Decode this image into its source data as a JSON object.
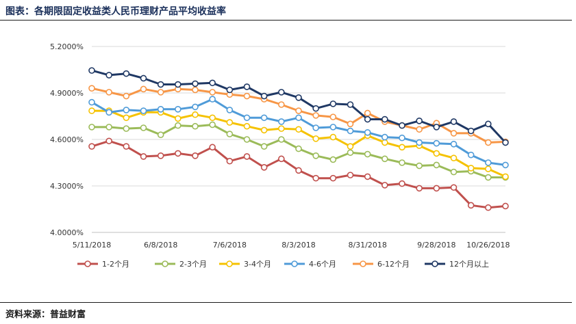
{
  "header": {
    "title": "图表：各期限固定收益类人民币理财产品平均收益率"
  },
  "footer": {
    "source": "资料来源：普益财富"
  },
  "chart_data": {
    "type": "line",
    "title": "",
    "xlabel": "",
    "ylabel": "",
    "ylim": [
      4.0,
      5.2
    ],
    "yticks": [
      "4.0000%",
      "4.3000%",
      "4.6000%",
      "4.9000%",
      "5.2000%"
    ],
    "xticks": [
      "5/11/2018",
      "6/8/2018",
      "7/6/2018",
      "8/3/2018",
      "8/31/2018",
      "9/28/2018",
      "10/26/2018"
    ],
    "grid": "horizontal",
    "legend": "bottom",
    "x": [
      "5/11/2018",
      "5/18/2018",
      "5/25/2018",
      "6/1/2018",
      "6/8/2018",
      "6/15/2018",
      "6/22/2018",
      "6/29/2018",
      "7/6/2018",
      "7/13/2018",
      "7/20/2018",
      "7/27/2018",
      "8/3/2018",
      "8/10/2018",
      "8/17/2018",
      "8/24/2018",
      "8/31/2018",
      "9/7/2018",
      "9/14/2018",
      "9/21/2018",
      "9/28/2018",
      "10/12/2018",
      "10/19/2018",
      "10/26/2018",
      "11/2/2018"
    ],
    "series": [
      {
        "name": "1-2个月",
        "color": "#c0504d",
        "values": [
          4.555,
          4.59,
          4.555,
          4.49,
          4.495,
          4.51,
          4.495,
          4.55,
          4.46,
          4.49,
          4.42,
          4.475,
          4.4,
          4.35,
          4.35,
          4.37,
          4.36,
          4.305,
          4.315,
          4.285,
          4.285,
          4.29,
          4.175,
          4.16,
          4.17
        ]
      },
      {
        "name": "2-3个月",
        "color": "#9bbb59",
        "values": [
          4.68,
          4.68,
          4.67,
          4.675,
          4.63,
          4.69,
          4.685,
          4.695,
          4.635,
          4.6,
          4.555,
          4.6,
          4.54,
          4.495,
          4.47,
          4.515,
          4.505,
          4.475,
          4.45,
          4.43,
          4.435,
          4.39,
          4.395,
          4.355,
          4.355
        ]
      },
      {
        "name": "3-4个月",
        "color": "#f5c200",
        "values": [
          4.785,
          4.785,
          4.74,
          4.775,
          4.775,
          4.735,
          4.76,
          4.74,
          4.71,
          4.685,
          4.66,
          4.67,
          4.665,
          4.605,
          4.615,
          4.555,
          4.625,
          4.58,
          4.55,
          4.56,
          4.51,
          4.48,
          4.415,
          4.41,
          4.36
        ]
      },
      {
        "name": "4-6个月",
        "color": "#4f9bd8",
        "values": [
          4.84,
          4.775,
          4.79,
          4.785,
          4.795,
          4.795,
          4.81,
          4.86,
          4.79,
          4.74,
          4.74,
          4.715,
          4.74,
          4.675,
          4.68,
          4.655,
          4.645,
          4.615,
          4.61,
          4.58,
          4.575,
          4.57,
          4.5,
          4.45,
          4.435
        ]
      },
      {
        "name": "6-12个月",
        "color": "#f79646",
        "values": [
          4.93,
          4.905,
          4.88,
          4.925,
          4.905,
          4.925,
          4.92,
          4.905,
          4.89,
          4.88,
          4.86,
          4.825,
          4.785,
          4.755,
          4.745,
          4.7,
          4.77,
          4.715,
          4.69,
          4.665,
          4.705,
          4.64,
          4.64,
          4.58,
          4.585
        ]
      },
      {
        "name": "12个月以上",
        "color": "#1f3864",
        "values": [
          5.045,
          5.015,
          5.025,
          4.995,
          4.955,
          4.955,
          4.96,
          4.965,
          4.92,
          4.94,
          4.88,
          4.905,
          4.87,
          4.8,
          4.83,
          4.825,
          4.73,
          4.73,
          4.69,
          4.72,
          4.68,
          4.715,
          4.655,
          4.7,
          4.58
        ]
      }
    ]
  }
}
